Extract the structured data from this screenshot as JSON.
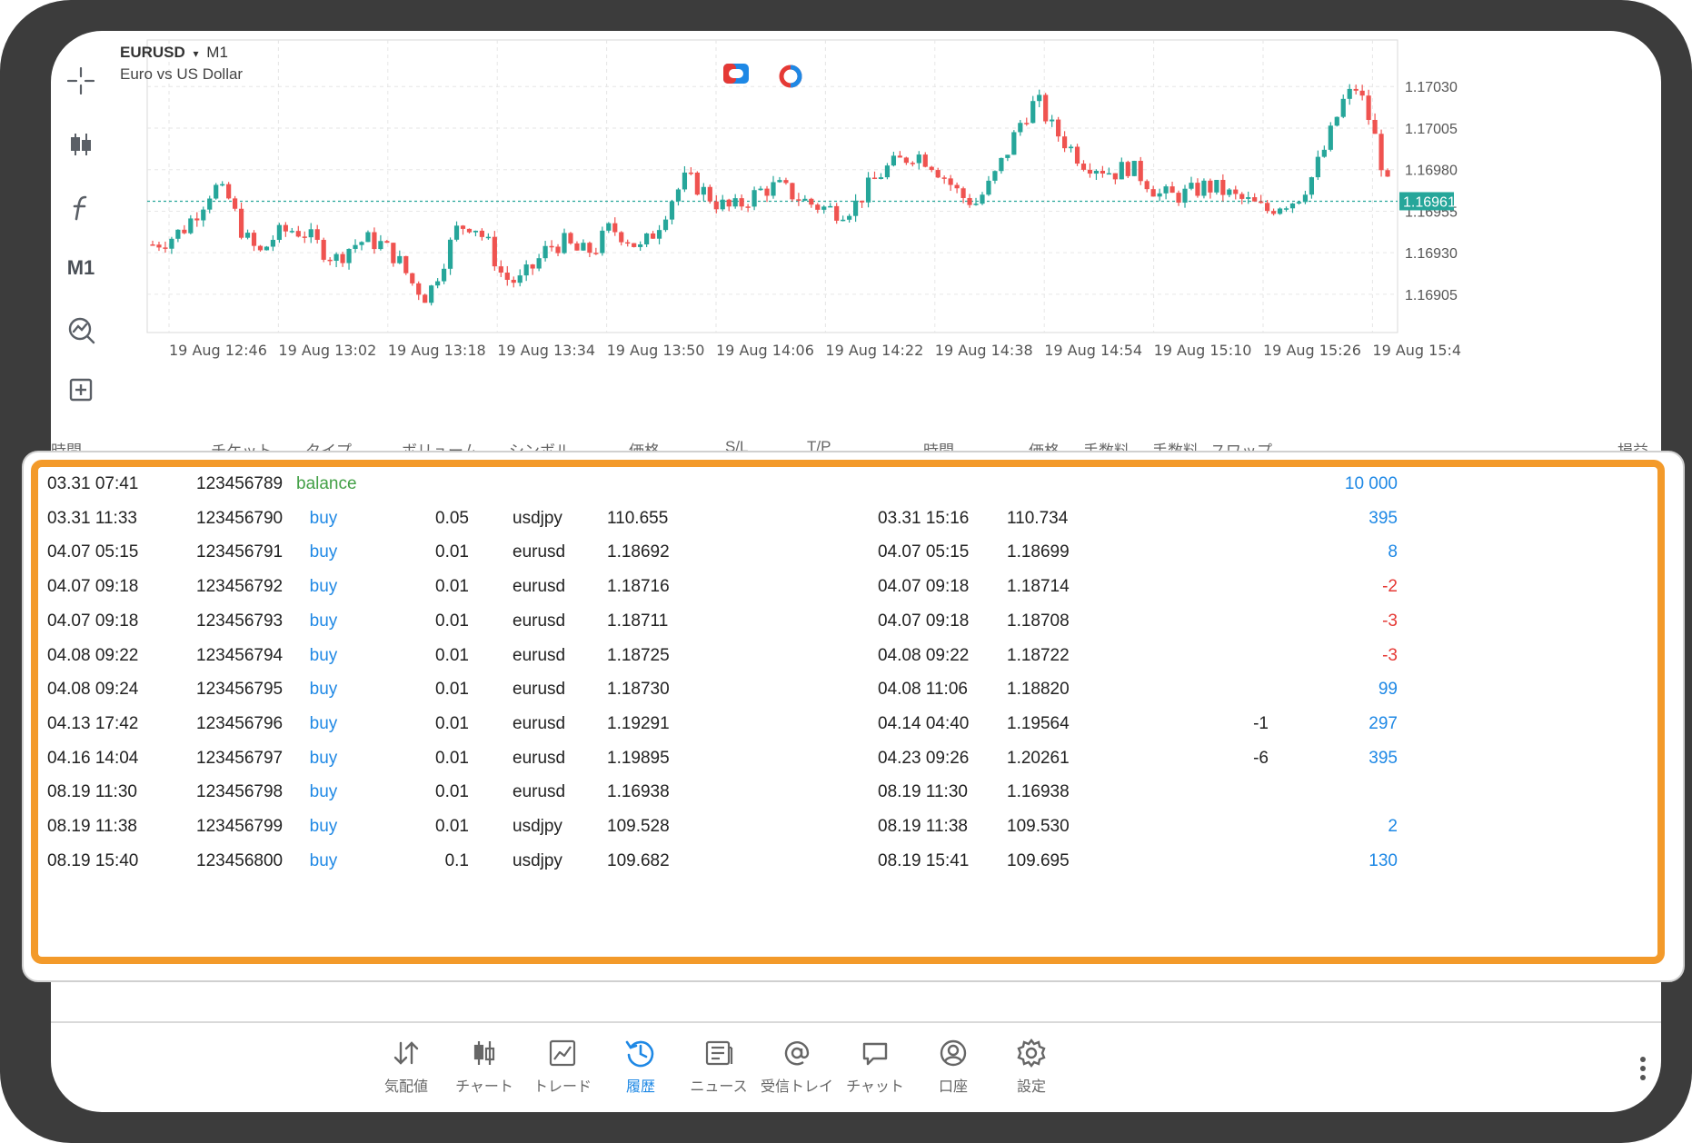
{
  "chart": {
    "symbol": "EURUSD",
    "dropdown_glyph": "▾",
    "timeframe": "M1",
    "description": "Euro vs US Dollar",
    "current_price": "1.16961",
    "price_labels": [
      "1.17030",
      "1.17005",
      "1.16980",
      "1.16955",
      "1.16930",
      "1.16905"
    ],
    "time_labels": [
      "19 Aug 12:46",
      "19 Aug 13:02",
      "19 Aug 13:18",
      "19 Aug 13:34",
      "19 Aug 13:50",
      "19 Aug 14:06",
      "19 Aug 14:22",
      "19 Aug 14:38",
      "19 Aug 14:54",
      "19 Aug 15:10",
      "19 Aug 15:26",
      "19 Aug 15:4"
    ],
    "colors": {
      "up": "#26a69a",
      "down": "#ef5350",
      "price_line": "#26a69a",
      "grid": "#e6e6e6"
    }
  },
  "toolbar": {
    "timeframe_label": "M1",
    "icons": [
      "crosshair-icon",
      "candlestick-type-icon",
      "indicator-f-icon",
      "timeframe",
      "objects-icon",
      "add-window-icon"
    ]
  },
  "history": {
    "header_hint": [
      "時間",
      "チケット",
      "タイプ",
      "ボリューム",
      "シンボル",
      "価格",
      "S/L",
      "T/P",
      "時間",
      "価格",
      "手数料",
      "手数料",
      "スワップ",
      "損益"
    ],
    "rows": [
      {
        "open_time": "03.31 07:41",
        "ticket": "123456789",
        "type": "balance",
        "volume": "",
        "symbol": "",
        "open_price": "",
        "close_time": "",
        "close_price": "",
        "commission": "",
        "profit": "10 000",
        "profit_sign": "pos"
      },
      {
        "open_time": "03.31 11:33",
        "ticket": "123456790",
        "type": "buy",
        "volume": "0.05",
        "symbol": "usdjpy",
        "open_price": "110.655",
        "close_time": "03.31 15:16",
        "close_price": "110.734",
        "commission": "",
        "profit": "395",
        "profit_sign": "pos"
      },
      {
        "open_time": "04.07 05:15",
        "ticket": "123456791",
        "type": "buy",
        "volume": "0.01",
        "symbol": "eurusd",
        "open_price": "1.18692",
        "close_time": "04.07 05:15",
        "close_price": "1.18699",
        "commission": "",
        "profit": "8",
        "profit_sign": "pos"
      },
      {
        "open_time": "04.07 09:18",
        "ticket": "123456792",
        "type": "buy",
        "volume": "0.01",
        "symbol": "eurusd",
        "open_price": "1.18716",
        "close_time": "04.07 09:18",
        "close_price": "1.18714",
        "commission": "",
        "profit": "-2",
        "profit_sign": "neg"
      },
      {
        "open_time": "04.07 09:18",
        "ticket": "123456793",
        "type": "buy",
        "volume": "0.01",
        "symbol": "eurusd",
        "open_price": "1.18711",
        "close_time": "04.07 09:18",
        "close_price": "1.18708",
        "commission": "",
        "profit": "-3",
        "profit_sign": "neg"
      },
      {
        "open_time": "04.08 09:22",
        "ticket": "123456794",
        "type": "buy",
        "volume": "0.01",
        "symbol": "eurusd",
        "open_price": "1.18725",
        "close_time": "04.08 09:22",
        "close_price": "1.18722",
        "commission": "",
        "profit": "-3",
        "profit_sign": "neg"
      },
      {
        "open_time": "04.08 09:24",
        "ticket": "123456795",
        "type": "buy",
        "volume": "0.01",
        "symbol": "eurusd",
        "open_price": "1.18730",
        "close_time": "04.08 11:06",
        "close_price": "1.18820",
        "commission": "",
        "profit": "99",
        "profit_sign": "pos"
      },
      {
        "open_time": "04.13 17:42",
        "ticket": "123456796",
        "type": "buy",
        "volume": "0.01",
        "symbol": "eurusd",
        "open_price": "1.19291",
        "close_time": "04.14 04:40",
        "close_price": "1.19564",
        "commission": "-1",
        "profit": "297",
        "profit_sign": "pos"
      },
      {
        "open_time": "04.16 14:04",
        "ticket": "123456797",
        "type": "buy",
        "volume": "0.01",
        "symbol": "eurusd",
        "open_price": "1.19895",
        "close_time": "04.23 09:26",
        "close_price": "1.20261",
        "commission": "-6",
        "profit": "395",
        "profit_sign": "pos"
      },
      {
        "open_time": "08.19 11:30",
        "ticket": "123456798",
        "type": "buy",
        "volume": "0.01",
        "symbol": "eurusd",
        "open_price": "1.16938",
        "close_time": "08.19 11:30",
        "close_price": "1.16938",
        "commission": "",
        "profit": "",
        "profit_sign": "pos"
      },
      {
        "open_time": "08.19 11:38",
        "ticket": "123456799",
        "type": "buy",
        "volume": "0.01",
        "symbol": "usdjpy",
        "open_price": "109.528",
        "close_time": "08.19 11:38",
        "close_price": "109.530",
        "commission": "",
        "profit": "2",
        "profit_sign": "pos"
      },
      {
        "open_time": "08.19 15:40",
        "ticket": "123456800",
        "type": "buy",
        "volume": "0.1",
        "symbol": "usdjpy",
        "open_price": "109.682",
        "close_time": "08.19 15:41",
        "close_price": "109.695",
        "commission": "",
        "profit": "130",
        "profit_sign": "pos"
      }
    ],
    "colors": {
      "highlight": "#f39a2a",
      "positive": "#1e88e5",
      "negative": "#e53935",
      "balance": "#43a047"
    }
  },
  "nav": {
    "items": [
      {
        "label": "気配値",
        "icon": "quotes-arrows-icon",
        "active": false
      },
      {
        "label": "チャート",
        "icon": "chart-candles-icon",
        "active": false
      },
      {
        "label": "トレード",
        "icon": "trade-chart-icon",
        "active": false
      },
      {
        "label": "履歴",
        "icon": "history-clock-icon",
        "active": true
      },
      {
        "label": "ニュース",
        "icon": "news-icon",
        "active": false
      },
      {
        "label": "受信トレイ",
        "icon": "mailbox-at-icon",
        "active": false
      },
      {
        "label": "チャット",
        "icon": "chat-bubble-icon",
        "active": false
      },
      {
        "label": "口座",
        "icon": "account-user-icon",
        "active": false
      },
      {
        "label": "設定",
        "icon": "settings-gear-icon",
        "active": false
      }
    ],
    "active_color": "#1e88e5"
  }
}
